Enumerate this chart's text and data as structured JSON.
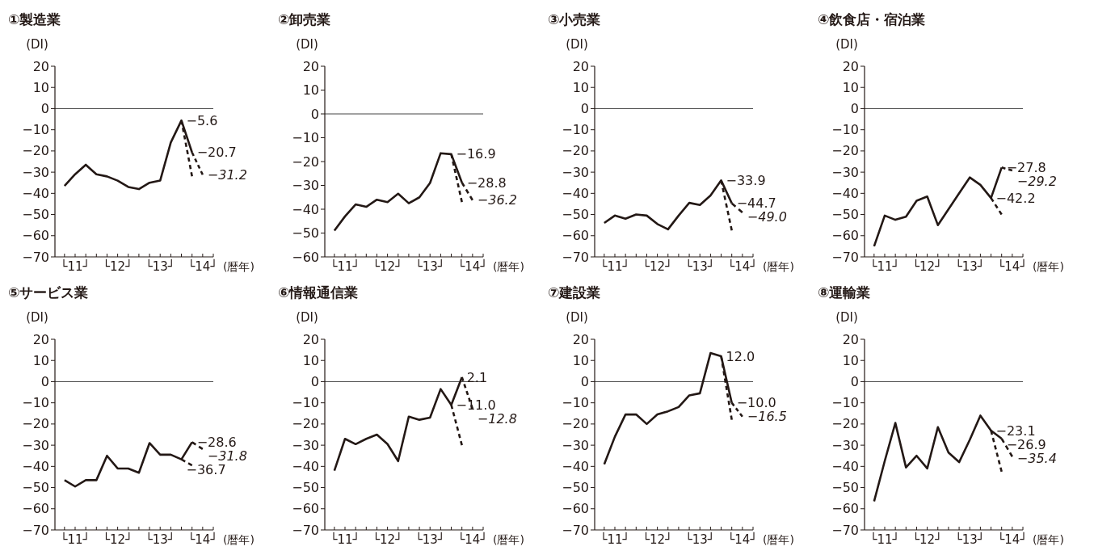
{
  "chart_data": [
    {
      "type": "line",
      "title": "①製造業",
      "ylabel": "(DI)",
      "xlabel": "(暦年)",
      "categories": [
        null,
        "└11┘",
        null,
        null,
        null,
        "└12┘",
        null,
        null,
        null,
        "└13┘",
        null,
        null,
        null,
        "└14┘",
        null
      ],
      "ylim": [
        -70,
        20
      ],
      "yticks": [
        20,
        10,
        0,
        -10,
        -20,
        -30,
        -40,
        -50,
        -60,
        -70
      ],
      "ref_lines": [
        {
          "axis": "y",
          "value": 0
        }
      ],
      "series": [
        {
          "color": "#231815",
          "line_style": "solid",
          "values": [
            -36.5,
            -31,
            -26.5,
            -31,
            -32,
            -34,
            -37,
            -38,
            -35,
            -34,
            -16,
            -5.6,
            -20.7,
            null,
            null
          ],
          "value_labels": [
            null,
            null,
            null,
            null,
            null,
            null,
            null,
            null,
            null,
            null,
            null,
            "−5.6",
            "−20.7",
            null,
            null
          ]
        },
        {
          "color": "#231815",
          "line_style": "dashed",
          "values": [
            null,
            null,
            null,
            null,
            null,
            null,
            null,
            null,
            null,
            null,
            null,
            -5.6,
            -32,
            null,
            null
          ]
        },
        {
          "color": "#231815",
          "line_style": "dashed",
          "values": [
            null,
            null,
            null,
            null,
            null,
            null,
            null,
            null,
            null,
            null,
            null,
            null,
            -20.7,
            -31.2,
            null
          ],
          "value_labels": [
            null,
            null,
            null,
            null,
            null,
            null,
            null,
            null,
            null,
            null,
            null,
            null,
            null,
            "−31.2",
            null
          ]
        }
      ]
    },
    {
      "type": "line",
      "title": "②卸売業",
      "ylabel": "(DI)",
      "xlabel": "(暦年)",
      "categories": [
        null,
        "└11┘",
        null,
        null,
        null,
        "└12┘",
        null,
        null,
        null,
        "└13┘",
        null,
        null,
        null,
        "└14┘",
        null
      ],
      "ylim": [
        -60,
        20
      ],
      "yticks": [
        20,
        10,
        0,
        -10,
        -20,
        -30,
        -40,
        -50,
        -60
      ],
      "ref_lines": [
        {
          "axis": "y",
          "value": 0
        }
      ],
      "series": [
        {
          "color": "#231815",
          "line_style": "solid",
          "values": [
            -49,
            -43,
            -38,
            -39,
            -36,
            -37,
            -33.5,
            -37.5,
            -35,
            -29,
            -16.5,
            -16.9,
            -28.8,
            null,
            null
          ],
          "value_labels": [
            null,
            null,
            null,
            null,
            null,
            null,
            null,
            null,
            null,
            null,
            null,
            "−16.9",
            "−28.8",
            null,
            null
          ]
        },
        {
          "color": "#231815",
          "line_style": "dashed",
          "values": [
            null,
            null,
            null,
            null,
            null,
            null,
            null,
            null,
            null,
            null,
            null,
            -16.9,
            -37,
            null,
            null
          ]
        },
        {
          "color": "#231815",
          "line_style": "dashed",
          "values": [
            null,
            null,
            null,
            null,
            null,
            null,
            null,
            null,
            null,
            null,
            null,
            null,
            -28.8,
            -36.2,
            null
          ],
          "value_labels": [
            null,
            null,
            null,
            null,
            null,
            null,
            null,
            null,
            null,
            null,
            null,
            null,
            null,
            "−36.2",
            null
          ]
        }
      ]
    },
    {
      "type": "line",
      "title": "③小売業",
      "ylabel": "(DI)",
      "xlabel": "(暦年)",
      "categories": [
        null,
        "└11┘",
        null,
        null,
        null,
        "└12┘",
        null,
        null,
        null,
        "└13┘",
        null,
        null,
        null,
        "└14┘",
        null
      ],
      "ylim": [
        -70,
        20
      ],
      "yticks": [
        20,
        10,
        0,
        -10,
        -20,
        -30,
        -40,
        -50,
        -60,
        -70
      ],
      "ref_lines": [
        {
          "axis": "y",
          "value": 0
        }
      ],
      "series": [
        {
          "color": "#231815",
          "line_style": "solid",
          "values": [
            -54,
            -50.5,
            -52,
            -50,
            -50.5,
            -54.5,
            -57,
            -50.5,
            -44.5,
            -45.5,
            -41,
            -33.9,
            -44.7,
            null,
            null
          ],
          "value_labels": [
            null,
            null,
            null,
            null,
            null,
            null,
            null,
            null,
            null,
            null,
            null,
            "−33.9",
            "−44.7",
            null,
            null
          ]
        },
        {
          "color": "#231815",
          "line_style": "dashed",
          "values": [
            null,
            null,
            null,
            null,
            null,
            null,
            null,
            null,
            null,
            null,
            null,
            -33.9,
            -57.5,
            null,
            null
          ]
        },
        {
          "color": "#231815",
          "line_style": "dashed",
          "values": [
            null,
            null,
            null,
            null,
            null,
            null,
            null,
            null,
            null,
            null,
            null,
            null,
            -44.7,
            -49.0,
            null
          ],
          "value_labels": [
            null,
            null,
            null,
            null,
            null,
            null,
            null,
            null,
            null,
            null,
            null,
            null,
            null,
            "−49.0",
            null
          ]
        }
      ]
    },
    {
      "type": "line",
      "title": "④飲食店・宿泊業",
      "ylabel": "(DI)",
      "xlabel": "(暦年)",
      "categories": [
        null,
        "└11┘",
        null,
        null,
        null,
        "└12┘",
        null,
        null,
        null,
        "└13┘",
        null,
        null,
        null,
        "└14┘",
        null
      ],
      "ylim": [
        -70,
        20
      ],
      "yticks": [
        20,
        10,
        0,
        -10,
        -20,
        -30,
        -40,
        -50,
        -60,
        -70
      ],
      "ref_lines": [
        {
          "axis": "y",
          "value": 0
        }
      ],
      "series": [
        {
          "color": "#231815",
          "line_style": "solid",
          "values": [
            -65,
            -50.5,
            -52.5,
            -51,
            -43.5,
            -41.5,
            -55,
            -47.5,
            -40,
            -32.5,
            -36,
            -42.2,
            -27.8,
            null,
            null
          ],
          "value_labels": [
            null,
            null,
            null,
            null,
            null,
            null,
            null,
            null,
            null,
            null,
            null,
            "−42.2",
            "−27.8",
            null,
            null
          ]
        },
        {
          "color": "#231815",
          "line_style": "dashed",
          "values": [
            null,
            null,
            null,
            null,
            null,
            null,
            null,
            null,
            null,
            null,
            null,
            -42.2,
            -50,
            null,
            null
          ]
        },
        {
          "color": "#231815",
          "line_style": "dashed",
          "values": [
            null,
            null,
            null,
            null,
            null,
            null,
            null,
            null,
            null,
            null,
            null,
            null,
            -27.8,
            -29.2,
            null
          ],
          "value_labels": [
            null,
            null,
            null,
            null,
            null,
            null,
            null,
            null,
            null,
            null,
            null,
            null,
            null,
            "−29.2",
            null
          ]
        }
      ]
    },
    {
      "type": "line",
      "title": "⑤サービス業",
      "ylabel": "(DI)",
      "xlabel": "(暦年)",
      "categories": [
        null,
        "└11┘",
        null,
        null,
        null,
        "└12┘",
        null,
        null,
        null,
        "└13┘",
        null,
        null,
        null,
        "└14┘",
        null
      ],
      "ylim": [
        -70,
        20
      ],
      "yticks": [
        20,
        10,
        0,
        -10,
        -20,
        -30,
        -40,
        -50,
        -60,
        -70
      ],
      "ref_lines": [
        {
          "axis": "y",
          "value": 0
        }
      ],
      "series": [
        {
          "color": "#231815",
          "line_style": "solid",
          "values": [
            -46.5,
            -49.5,
            -46.5,
            -46.5,
            -35,
            -41,
            -41,
            -43,
            -29,
            -34.5,
            -34.5,
            -36.7,
            -28.6,
            null,
            null
          ],
          "value_labels": [
            null,
            null,
            null,
            null,
            null,
            null,
            null,
            null,
            null,
            null,
            null,
            "−36.7",
            "−28.6",
            null,
            null
          ]
        },
        {
          "color": "#231815",
          "line_style": "dashed",
          "values": [
            null,
            null,
            null,
            null,
            null,
            null,
            null,
            null,
            null,
            null,
            null,
            -36.7,
            -39.5,
            null,
            null
          ]
        },
        {
          "color": "#231815",
          "line_style": "dashed",
          "values": [
            null,
            null,
            null,
            null,
            null,
            null,
            null,
            null,
            null,
            null,
            null,
            null,
            -28.6,
            -31.8,
            null
          ],
          "value_labels": [
            null,
            null,
            null,
            null,
            null,
            null,
            null,
            null,
            null,
            null,
            null,
            null,
            null,
            "−31.8",
            null
          ]
        }
      ]
    },
    {
      "type": "line",
      "title": "⑥情報通信業",
      "ylabel": "(DI)",
      "xlabel": "(暦年)",
      "categories": [
        null,
        "└11┘",
        null,
        null,
        null,
        "└12┘",
        null,
        null,
        null,
        "└13┘",
        null,
        null,
        null,
        "└14┘",
        null
      ],
      "ylim": [
        -70,
        20
      ],
      "yticks": [
        20,
        10,
        0,
        -10,
        -20,
        -30,
        -40,
        -50,
        -60,
        -70
      ],
      "ref_lines": [
        {
          "axis": "y",
          "value": 0
        }
      ],
      "series": [
        {
          "color": "#231815",
          "line_style": "solid",
          "values": [
            -42,
            -27,
            -29.5,
            -27,
            -25,
            -29.5,
            -37.5,
            -16.5,
            -18,
            -17,
            -3.5,
            -11.0,
            2.1,
            null,
            null
          ],
          "value_labels": [
            null,
            null,
            null,
            null,
            null,
            null,
            null,
            null,
            null,
            null,
            null,
            "−11.0",
            "2.1",
            null,
            null
          ]
        },
        {
          "color": "#231815",
          "line_style": "dashed",
          "values": [
            null,
            null,
            null,
            null,
            null,
            null,
            null,
            null,
            null,
            null,
            null,
            -11.0,
            -30,
            null,
            null
          ]
        },
        {
          "color": "#231815",
          "line_style": "dashed",
          "values": [
            null,
            null,
            null,
            null,
            null,
            null,
            null,
            null,
            null,
            null,
            null,
            null,
            2.1,
            -12.8,
            null
          ],
          "value_labels": [
            null,
            null,
            null,
            null,
            null,
            null,
            null,
            null,
            null,
            null,
            null,
            null,
            null,
            "−12.8",
            null
          ]
        }
      ]
    },
    {
      "type": "line",
      "title": "⑦建設業",
      "ylabel": "(DI)",
      "xlabel": "(暦年)",
      "categories": [
        null,
        "└11┘",
        null,
        null,
        null,
        "└12┘",
        null,
        null,
        null,
        "└13┘",
        null,
        null,
        null,
        "└14┘",
        null
      ],
      "ylim": [
        -70,
        20
      ],
      "yticks": [
        20,
        10,
        0,
        -10,
        -20,
        -30,
        -40,
        -50,
        -60,
        -70
      ],
      "ref_lines": [
        {
          "axis": "y",
          "value": 0
        }
      ],
      "series": [
        {
          "color": "#231815",
          "line_style": "solid",
          "values": [
            -39,
            -26,
            -15.5,
            -15.5,
            -20,
            -15.5,
            -14,
            -12,
            -6.5,
            -5.5,
            13.5,
            12.0,
            -10.0,
            null,
            null
          ],
          "value_labels": [
            null,
            null,
            null,
            null,
            null,
            null,
            null,
            null,
            null,
            null,
            null,
            "12.0",
            "−10.0",
            null,
            null
          ]
        },
        {
          "color": "#231815",
          "line_style": "dashed",
          "values": [
            null,
            null,
            null,
            null,
            null,
            null,
            null,
            null,
            null,
            null,
            null,
            12.0,
            -18,
            null,
            null
          ]
        },
        {
          "color": "#231815",
          "line_style": "dashed",
          "values": [
            null,
            null,
            null,
            null,
            null,
            null,
            null,
            null,
            null,
            null,
            null,
            null,
            -10.0,
            -16.5,
            null
          ],
          "value_labels": [
            null,
            null,
            null,
            null,
            null,
            null,
            null,
            null,
            null,
            null,
            null,
            null,
            null,
            "−16.5",
            null
          ]
        }
      ]
    },
    {
      "type": "line",
      "title": "⑧運輸業",
      "ylabel": "(DI)",
      "xlabel": "(暦年)",
      "categories": [
        null,
        "└11┘",
        null,
        null,
        null,
        "└12┘",
        null,
        null,
        null,
        "└13┘",
        null,
        null,
        null,
        "└14┘",
        null
      ],
      "ylim": [
        -70,
        20
      ],
      "yticks": [
        20,
        10,
        0,
        -10,
        -20,
        -30,
        -40,
        -50,
        -60,
        -70
      ],
      "ref_lines": [
        {
          "axis": "y",
          "value": 0
        }
      ],
      "series": [
        {
          "color": "#231815",
          "line_style": "solid",
          "values": [
            -56.5,
            -37.5,
            -19.5,
            -40.5,
            -35,
            -41,
            -21.5,
            -33.5,
            -38,
            -27.5,
            -16,
            -23.1,
            -26.9,
            null,
            null
          ],
          "value_labels": [
            null,
            null,
            null,
            null,
            null,
            null,
            null,
            null,
            null,
            null,
            null,
            "−23.1",
            "−26.9",
            null,
            null
          ]
        },
        {
          "color": "#231815",
          "line_style": "dashed",
          "values": [
            null,
            null,
            null,
            null,
            null,
            null,
            null,
            null,
            null,
            null,
            null,
            -23.1,
            -42.5,
            null,
            null
          ]
        },
        {
          "color": "#231815",
          "line_style": "dashed",
          "values": [
            null,
            null,
            null,
            null,
            null,
            null,
            null,
            null,
            null,
            null,
            null,
            null,
            -26.9,
            -35.4,
            null
          ],
          "value_labels": [
            null,
            null,
            null,
            null,
            null,
            null,
            null,
            null,
            null,
            null,
            null,
            null,
            null,
            "−35.4",
            null
          ]
        }
      ]
    }
  ]
}
